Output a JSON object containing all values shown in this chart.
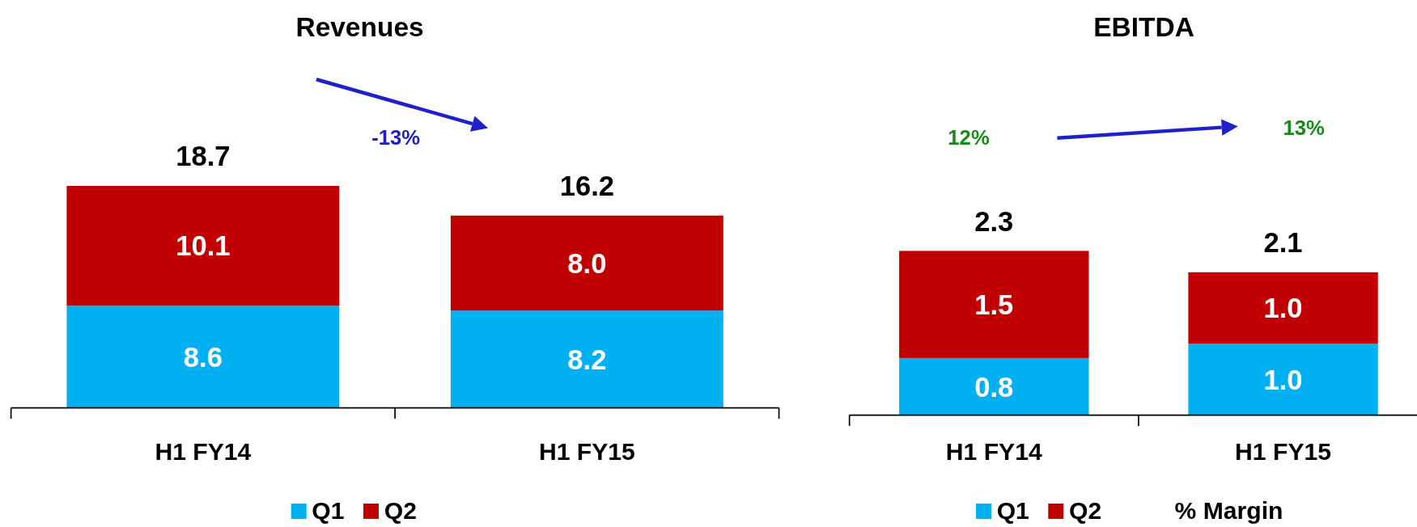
{
  "chart_data": [
    {
      "type": "bar",
      "title": "Revenues",
      "categories": [
        "H1 FY14",
        "H1 FY15"
      ],
      "stacked": true,
      "legend": "bottom",
      "totals": [
        "18.7",
        "16.2"
      ],
      "series": [
        {
          "name": "Q1",
          "color": "#00b0f0",
          "values": [
            8.6,
            8.2
          ],
          "value_labels": [
            "8.6",
            "8.2"
          ]
        },
        {
          "name": "Q2",
          "color": "#c00000",
          "values": [
            10.1,
            8.0
          ],
          "value_labels": [
            "10.1",
            "8.0"
          ]
        }
      ],
      "annotations": [
        "-13%"
      ]
    },
    {
      "type": "bar",
      "title": "EBITDA",
      "categories": [
        "H1 FY14",
        "H1 FY15"
      ],
      "stacked": true,
      "legend": "bottom",
      "totals": [
        "2.3",
        "2.1"
      ],
      "series": [
        {
          "name": "Q1",
          "color": "#00b0f0",
          "values": [
            0.8,
            1.0
          ],
          "value_labels": [
            "0.8",
            "1.0"
          ]
        },
        {
          "name": "Q2",
          "color": "#c00000",
          "values": [
            1.5,
            1.0
          ],
          "value_labels": [
            "1.5",
            "1.0"
          ]
        }
      ],
      "annotations": [
        "12%",
        "13%",
        "% Margin"
      ]
    }
  ]
}
